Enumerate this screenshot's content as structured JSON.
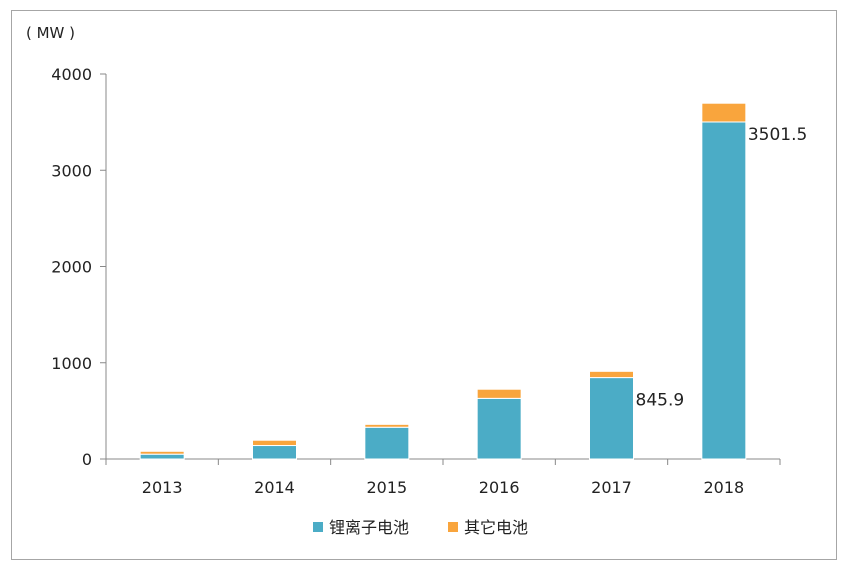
{
  "chart_data": {
    "type": "bar",
    "stacked": true,
    "unit_label": "( MW )",
    "categories": [
      "2013",
      "2014",
      "2015",
      "2016",
      "2017",
      "2018"
    ],
    "series": [
      {
        "name": "锂离子电池",
        "color": "#4bacc6",
        "values": [
          50,
          140,
          330,
          630,
          845.9,
          3501.5
        ]
      },
      {
        "name": "其它电池",
        "color": "#f9a53d",
        "values": [
          30,
          55,
          30,
          95,
          65,
          195
        ]
      }
    ],
    "data_labels": [
      {
        "category": "2017",
        "value": "845.9"
      },
      {
        "category": "2018",
        "value": "3501.5"
      }
    ],
    "yticks": [
      "0",
      "1000",
      "2000",
      "3000",
      "4000"
    ],
    "ylim": [
      0,
      4000
    ],
    "grid": false,
    "legend_position": "bottom"
  }
}
